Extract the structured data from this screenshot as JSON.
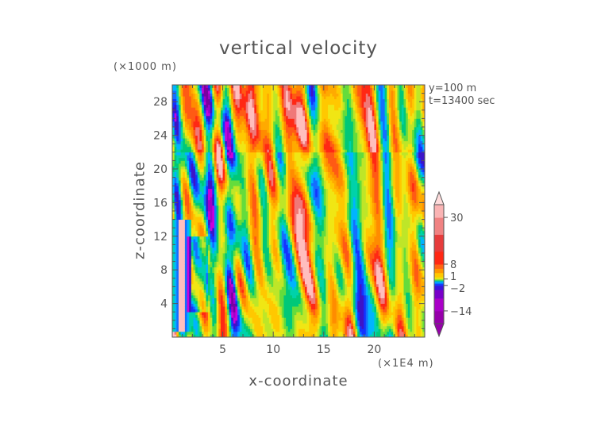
{
  "chart_data": {
    "type": "heatmap",
    "title": "vertical velocity",
    "xlabel": "x-coordinate",
    "ylabel": "z-coordinate",
    "x_unit_label": "(×1E4 m)",
    "y_unit_label": "(×1000 m)",
    "annotations": [
      "y=100 m",
      "t=13400 sec"
    ],
    "x_ticks": [
      5,
      10,
      15,
      20
    ],
    "y_ticks": [
      4,
      8,
      12,
      16,
      20,
      24,
      28
    ],
    "xlim": [
      0,
      25
    ],
    "ylim": [
      0,
      30
    ],
    "colorbar": {
      "ticks": [
        {
          "value": 30,
          "label": "30"
        },
        {
          "value": 8,
          "label": "8"
        },
        {
          "value": 1,
          "label": "1"
        },
        {
          "value": -2,
          "label": "−2"
        },
        {
          "value": -14,
          "label": "−14"
        }
      ],
      "range": [
        -20,
        36
      ],
      "extend": "both"
    },
    "field_pattern": "vertical streaks of alternating positive (orange/red) and negative (blue) velocity over a green/yellow background; strong updraft column near x≈1 between z≈1 and z≈14"
  },
  "colors": {
    "text": "#555555",
    "frame": "#555555",
    "neg_strong": "#a000c8",
    "neg": "#1e3cff",
    "near_zero": "#00c88c",
    "pos": "#ffb400",
    "pos_strong": "#ff3020"
  }
}
